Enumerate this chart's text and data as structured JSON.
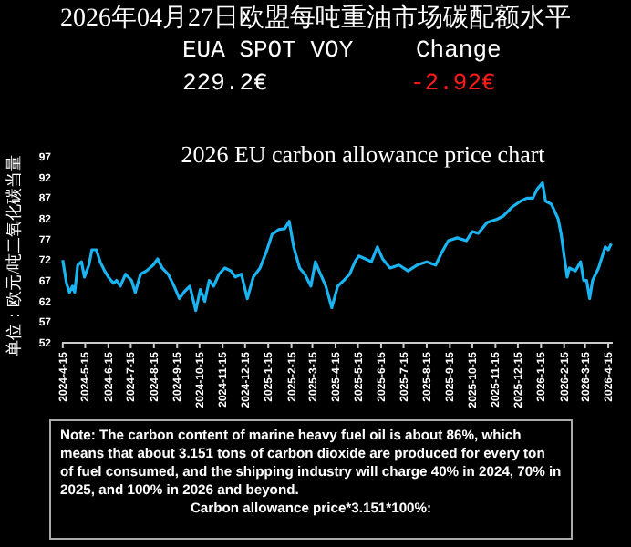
{
  "chart_data": {
    "type": "line",
    "title": "2026年04月27日欧盟每吨重油市场碳配额水平",
    "subtitle": "2026 EU carbon allowance price chart",
    "ylabel": "单位：欧元/吨二氧化碳当量",
    "annotations": [
      "EUA SPOT VOY",
      "229.2€",
      "Change",
      "-2.92€",
      "Note: The carbon content of marine heavy fuel oil is about 86%, which means that about 3.151 tons of carbon dioxide are produced for every ton of fuel consumed, and the shipping industry will charge 40% in 2024, 70% in 2025, and 100% in 2026 and beyond.",
      "Carbon allowance price*3.151*100%:"
    ],
    "xlim": [
      "2024-04-14",
      "2026-04-21"
    ],
    "xticks": [
      {
        "value": "2024-04-15",
        "label": "2024-4-15"
      },
      {
        "value": "2024-05-15",
        "label": "2024-5-15"
      },
      {
        "value": "2024-06-15",
        "label": "2024-6-15"
      },
      {
        "value": "2024-07-15",
        "label": "2024-7-15"
      },
      {
        "value": "2024-08-15",
        "label": "2024-8-15"
      },
      {
        "value": "2024-09-15",
        "label": "2024-9-15"
      },
      {
        "value": "2024-10-15",
        "label": "2024-10-15"
      },
      {
        "value": "2024-11-15",
        "label": "2024-11-15"
      },
      {
        "value": "2024-12-15",
        "label": "2024-12-15"
      },
      {
        "value": "2025-01-15",
        "label": "2025-1-15"
      },
      {
        "value": "2025-02-15",
        "label": "2025-2-15"
      },
      {
        "value": "2025-03-15",
        "label": "2025-3-15"
      },
      {
        "value": "2025-04-15",
        "label": "2025-4-15"
      },
      {
        "value": "2025-05-15",
        "label": "2025-5-15"
      },
      {
        "value": "2025-06-15",
        "label": "2025-6-15"
      },
      {
        "value": "2025-07-15",
        "label": "2025-7-15"
      },
      {
        "value": "2025-08-15",
        "label": "2025-8-15"
      },
      {
        "value": "2025-09-15",
        "label": "2025-9-15"
      },
      {
        "value": "2025-10-15",
        "label": "2025-10-15"
      },
      {
        "value": "2025-11-15",
        "label": "2025-11-15"
      },
      {
        "value": "2025-12-15",
        "label": "2025-12-15"
      },
      {
        "value": "2026-01-15",
        "label": "2026-1-15"
      },
      {
        "value": "2026-02-15",
        "label": "2026-2-15"
      },
      {
        "value": "2026-03-15",
        "label": "2026-3-15"
      },
      {
        "value": "2026-04-15",
        "label": "2026-4-15"
      }
    ],
    "ylim": [
      52,
      97
    ],
    "yticks": [
      52,
      57,
      62,
      67,
      72,
      77,
      82,
      87,
      92,
      97
    ],
    "x": [
      "2024-04-15",
      "2024-04-20",
      "2024-04-24",
      "2024-04-28",
      "2024-05-01",
      "2024-05-05",
      "2024-05-10",
      "2024-05-14",
      "2024-05-20",
      "2024-05-24",
      "2024-05-30",
      "2024-06-04",
      "2024-06-10",
      "2024-06-15",
      "2024-06-22",
      "2024-06-26",
      "2024-07-01",
      "2024-07-08",
      "2024-07-16",
      "2024-07-21",
      "2024-07-28",
      "2024-08-05",
      "2024-08-14",
      "2024-08-20",
      "2024-08-26",
      "2024-09-03",
      "2024-09-11",
      "2024-09-18",
      "2024-09-24",
      "2024-10-02",
      "2024-10-10",
      "2024-10-16",
      "2024-10-22",
      "2024-10-28",
      "2024-11-03",
      "2024-11-10",
      "2024-11-18",
      "2024-11-26",
      "2024-12-02",
      "2024-12-10",
      "2024-12-18",
      "2024-12-26",
      "2025-01-04",
      "2025-01-12",
      "2025-01-20",
      "2025-01-29",
      "2025-02-06",
      "2025-02-12",
      "2025-02-18",
      "2025-02-26",
      "2025-03-05",
      "2025-03-13",
      "2025-03-19",
      "2025-03-24",
      "2025-04-02",
      "2025-04-10",
      "2025-04-18",
      "2025-04-26",
      "2025-05-04",
      "2025-05-11",
      "2025-05-16",
      "2025-05-25",
      "2025-06-02",
      "2025-06-10",
      "2025-06-17",
      "2025-06-27",
      "2025-07-09",
      "2025-07-21",
      "2025-08-02",
      "2025-08-15",
      "2025-08-27",
      "2025-09-04",
      "2025-09-13",
      "2025-09-25",
      "2025-10-07",
      "2025-10-15",
      "2025-10-23",
      "2025-11-04",
      "2025-11-17",
      "2025-11-25",
      "2025-12-07",
      "2025-12-19",
      "2025-12-27",
      "2026-01-04",
      "2026-01-10",
      "2026-01-17",
      "2026-01-21",
      "2026-01-29",
      "2026-02-07",
      "2026-02-11",
      "2026-02-15",
      "2026-02-19",
      "2026-02-22",
      "2026-03-02",
      "2026-03-09",
      "2026-03-13",
      "2026-03-17",
      "2026-03-21",
      "2026-03-25",
      "2026-04-02",
      "2026-04-11",
      "2026-04-15",
      "2026-04-19"
    ],
    "series": [
      {
        "color": "#1ab4f2",
        "values": [
          72.0,
          66.4,
          64.2,
          65.7,
          64.2,
          70.8,
          71.6,
          67.9,
          70.8,
          74.5,
          74.5,
          71.6,
          69.4,
          67.9,
          66.4,
          67.1,
          65.7,
          68.6,
          67.1,
          64.2,
          68.6,
          69.4,
          70.8,
          72.3,
          70.1,
          68.6,
          65.7,
          62.7,
          64.2,
          65.7,
          59.8,
          64.9,
          62.0,
          67.1,
          65.7,
          68.6,
          70.1,
          69.4,
          67.9,
          68.6,
          62.7,
          67.9,
          70.1,
          73.8,
          78.2,
          79.4,
          79.6,
          81.4,
          75.2,
          70.1,
          68.6,
          65.7,
          71.6,
          69.4,
          65.7,
          60.5,
          65.7,
          67.1,
          68.6,
          71.6,
          73.0,
          72.3,
          71.6,
          75.2,
          72.3,
          70.1,
          70.8,
          69.4,
          70.8,
          71.6,
          70.8,
          73.8,
          76.7,
          77.4,
          76.7,
          78.9,
          78.5,
          81.1,
          81.9,
          82.6,
          84.8,
          86.3,
          87.0,
          87.0,
          89.2,
          90.7,
          86.3,
          85.5,
          81.9,
          78.2,
          73.0,
          67.9,
          70.1,
          69.4,
          71.6,
          67.1,
          67.1,
          62.7,
          67.1,
          70.1,
          75.2,
          74.5,
          76.0
        ]
      }
    ]
  }
}
